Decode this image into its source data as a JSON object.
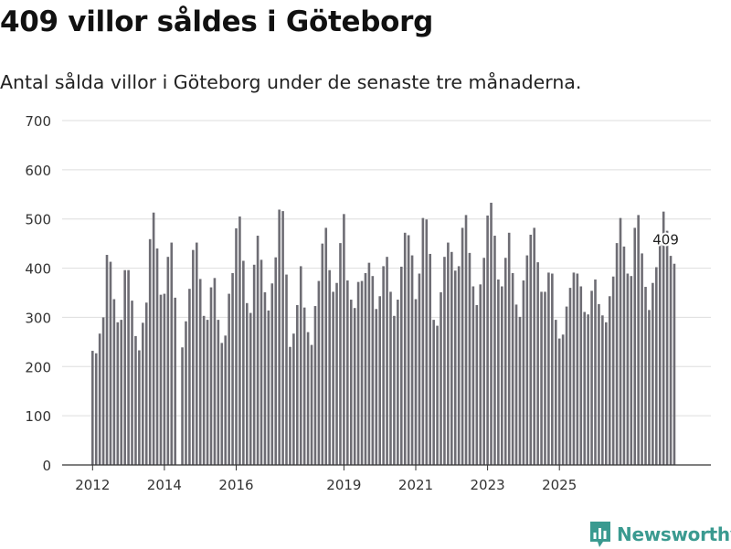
{
  "title": "409 villor såldes i Göteborg",
  "subtitle": "Antal sålda villor i Göteborg under de senaste tre månaderna.",
  "brand": {
    "name": "Newsworthy",
    "icon": "newsworthy-logo-icon",
    "color": "#3a9a90"
  },
  "colors": {
    "bar": "#6e6d74",
    "highlight": "#1e9c8c",
    "grid": "#dedede",
    "axis": "#333333",
    "tick_text": "#333333"
  },
  "chart_data": {
    "type": "bar",
    "title": "409 villor såldes i Göteborg",
    "xlabel": "",
    "ylabel": "",
    "ylim": [
      0,
      700
    ],
    "yticks": [
      0,
      100,
      200,
      300,
      400,
      500,
      600,
      700
    ],
    "xticks": [
      {
        "label": "2012",
        "index": 0
      },
      {
        "label": "2014",
        "index": 20
      },
      {
        "label": "2016",
        "index": 40
      },
      {
        "label": "2019",
        "index": 70
      },
      {
        "label": "2021",
        "index": 90
      },
      {
        "label": "2023",
        "index": 110
      },
      {
        "label": "2025",
        "index": 130
      }
    ],
    "series": [
      {
        "name": "Antal sålda villor",
        "values": [
          232,
          227,
          267,
          300,
          427,
          413,
          337,
          290,
          295,
          396,
          396,
          334,
          262,
          233,
          289,
          330,
          459,
          513,
          440,
          346,
          348,
          423,
          452,
          340,
          0,
          239,
          292,
          358,
          437,
          452,
          378,
          303,
          295,
          361,
          380,
          295,
          248,
          263,
          348,
          390,
          481,
          505,
          415,
          329,
          309,
          407,
          466,
          417,
          351,
          314,
          369,
          422,
          519,
          516,
          387,
          240,
          267,
          325,
          404,
          320,
          270,
          244,
          323,
          374,
          450,
          482,
          396,
          352,
          370,
          451,
          510,
          375,
          336,
          319,
          372,
          374,
          390,
          411,
          384,
          317,
          343,
          404,
          423,
          352,
          303,
          336,
          403,
          472,
          467,
          426,
          337,
          389,
          502,
          499,
          429,
          295,
          283,
          351,
          423,
          452,
          433,
          395,
          404,
          482,
          508,
          431,
          363,
          325,
          367,
          421,
          507,
          533,
          466,
          377,
          363,
          421,
          472,
          390,
          326,
          301,
          375,
          426,
          468,
          482,
          412,
          352,
          352,
          391,
          389,
          295,
          257,
          265,
          322,
          360,
          391,
          389,
          363,
          311,
          306,
          354,
          377,
          327,
          304,
          290,
          343,
          383,
          451,
          502,
          444,
          389,
          384,
          482,
          508,
          430,
          362,
          315,
          370,
          402,
          469,
          515,
          476,
          425,
          409
        ]
      }
    ],
    "highlight": {
      "index": 163,
      "value": 409,
      "label": "409"
    }
  }
}
